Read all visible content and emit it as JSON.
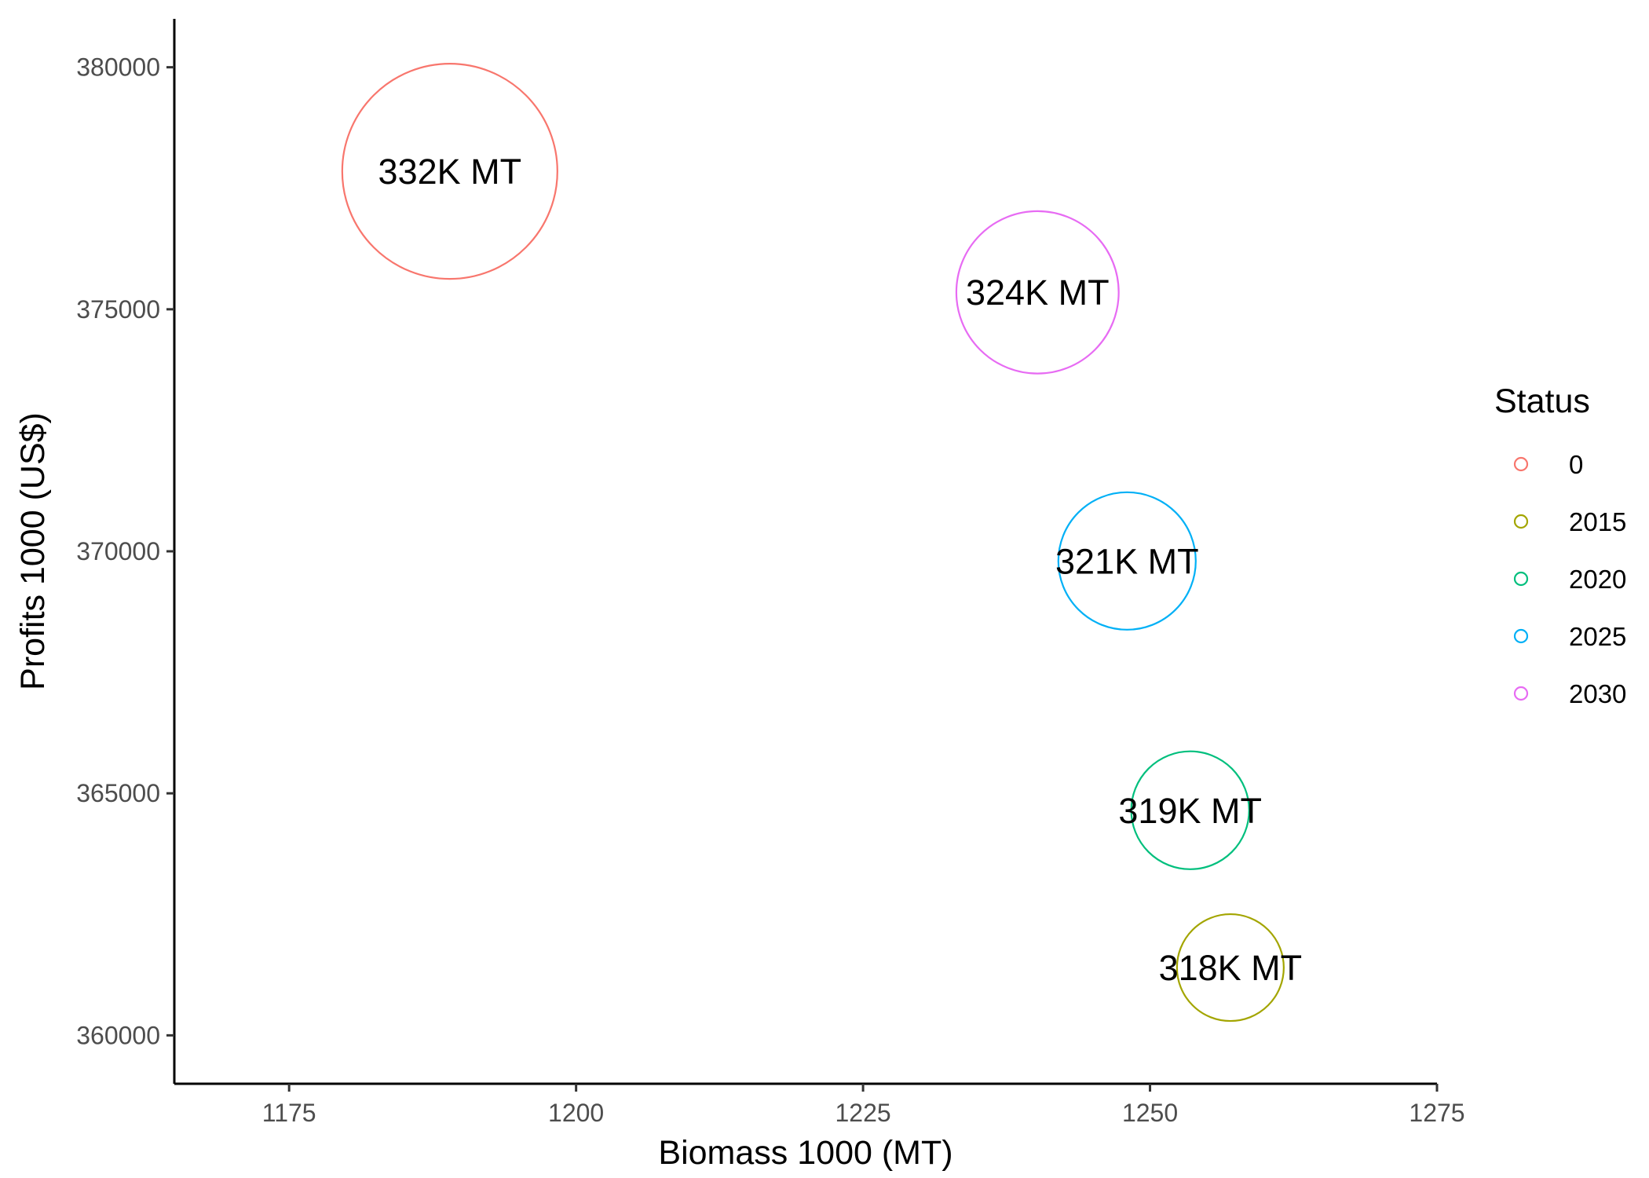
{
  "chart_data": {
    "type": "scatter",
    "xlabel": "Biomass 1000 (MT)",
    "ylabel": "Profits 1000 (US$)",
    "xlim": [
      1165,
      1275
    ],
    "ylim": [
      359000,
      381000
    ],
    "xticks": [
      1175,
      1200,
      1225,
      1250,
      1275
    ],
    "yticks": [
      360000,
      365000,
      370000,
      375000,
      380000
    ],
    "grid": false,
    "legend": {
      "title": "Status",
      "placement": "right",
      "entries": [
        {
          "name": "0",
          "color": "#F8766D"
        },
        {
          "name": "2015",
          "color": "#A3A500"
        },
        {
          "name": "2020",
          "color": "#00BF7D"
        },
        {
          "name": "2025",
          "color": "#00B0F6"
        },
        {
          "name": "2030",
          "color": "#E76BF3"
        }
      ]
    },
    "size_variable_note": "",
    "points": [
      {
        "status": "0",
        "x": 1189,
        "y": 377850,
        "size": 332,
        "label": "332K MT",
        "color": "#F8766D"
      },
      {
        "status": "2030",
        "x": 1240.2,
        "y": 375350,
        "size": 324,
        "label": "324K MT",
        "color": "#E76BF3"
      },
      {
        "status": "2025",
        "x": 1248,
        "y": 369800,
        "size": 321,
        "label": "321K MT",
        "color": "#00B0F6"
      },
      {
        "status": "2020",
        "x": 1253.5,
        "y": 364650,
        "size": 319,
        "label": "319K MT",
        "color": "#00BF7D"
      },
      {
        "status": "2015",
        "x": 1257,
        "y": 361400,
        "size": 318,
        "label": "318K MT",
        "color": "#A3A500"
      }
    ]
  }
}
